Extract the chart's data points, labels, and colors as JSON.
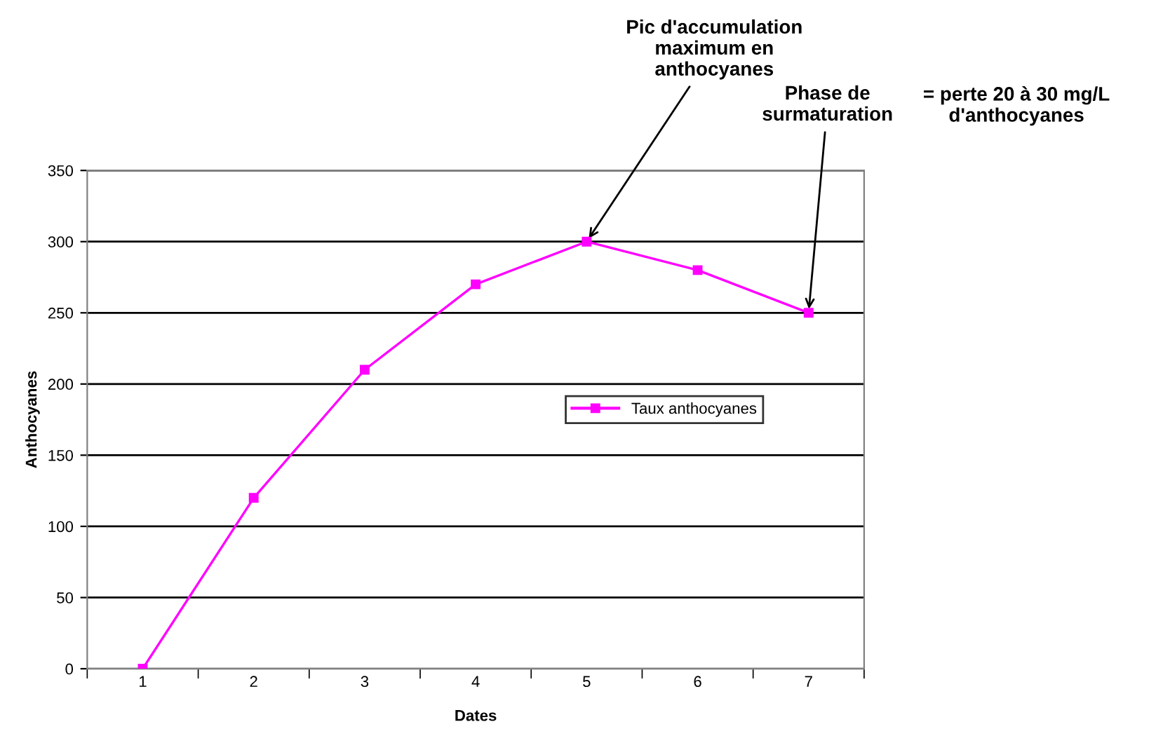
{
  "chart_data": {
    "type": "line",
    "xlabel": "Dates",
    "ylabel": "Anthocyanes",
    "categories": [
      "1",
      "2",
      "3",
      "4",
      "5",
      "6",
      "7"
    ],
    "series": [
      {
        "name": "Taux anthocyanes",
        "color": "#ff00ff",
        "values": [
          0,
          120,
          210,
          270,
          300,
          280,
          250
        ]
      }
    ],
    "ylim": [
      0,
      350
    ],
    "yticks": [
      0,
      50,
      100,
      150,
      200,
      250,
      300,
      350
    ],
    "grid": "y",
    "legend": "right",
    "marker": "square",
    "line_style": "solid",
    "annotations": [
      {
        "text": "Pic d'accumulation\nmaximum en\nanthocyanes",
        "x": "5",
        "y": 300
      },
      {
        "text": "Phase de\nsurmaturation",
        "x": "7",
        "y": 250
      },
      "= perte 20 à 30 mg/L\nd'anthocyanes"
    ]
  }
}
